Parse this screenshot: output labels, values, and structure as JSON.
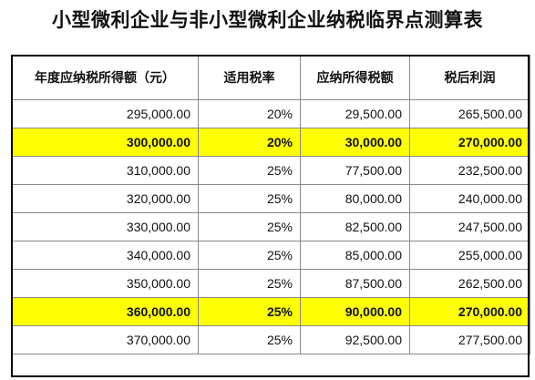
{
  "title": "小型微利企业与非小型微利企业纳税临界点测算表",
  "columns": [
    "年度应纳税所得额（元）",
    "适用税率",
    "应纳所得税额",
    "税后利润"
  ],
  "highlight_color": "#ffff00",
  "rows": [
    {
      "cells": [
        "295,000.00",
        "20%",
        "29,500.00",
        "265,500.00"
      ],
      "highlighted": false
    },
    {
      "cells": [
        "300,000.00",
        "20%",
        "30,000.00",
        "270,000.00"
      ],
      "highlighted": true
    },
    {
      "cells": [
        "310,000.00",
        "25%",
        "77,500.00",
        "232,500.00"
      ],
      "highlighted": false
    },
    {
      "cells": [
        "320,000.00",
        "25%",
        "80,000.00",
        "240,000.00"
      ],
      "highlighted": false
    },
    {
      "cells": [
        "330,000.00",
        "25%",
        "82,500.00",
        "247,500.00"
      ],
      "highlighted": false
    },
    {
      "cells": [
        "340,000.00",
        "25%",
        "85,000.00",
        "255,000.00"
      ],
      "highlighted": false
    },
    {
      "cells": [
        "350,000.00",
        "25%",
        "87,500.00",
        "262,500.00"
      ],
      "highlighted": false
    },
    {
      "cells": [
        "360,000.00",
        "25%",
        "90,000.00",
        "270,000.00"
      ],
      "highlighted": true
    },
    {
      "cells": [
        "370,000.00",
        "25%",
        "92,500.00",
        "277,500.00"
      ],
      "highlighted": false
    }
  ]
}
